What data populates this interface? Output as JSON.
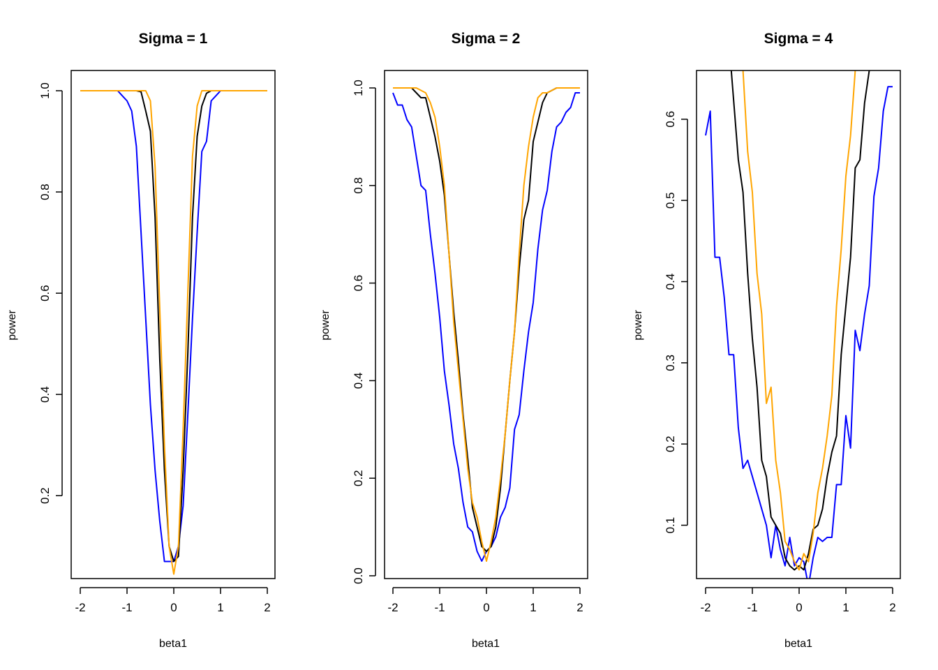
{
  "figure": {
    "panels": [
      {
        "title": "Sigma = 1",
        "xlabel": "beta1",
        "ylabel": "power"
      },
      {
        "title": "Sigma = 2",
        "xlabel": "beta1",
        "ylabel": "power"
      },
      {
        "title": "Sigma = 4",
        "xlabel": "beta1",
        "ylabel": "power"
      }
    ]
  },
  "chart_data": [
    {
      "type": "line",
      "title": "Sigma = 1",
      "xlabel": "beta1",
      "ylabel": "power",
      "xlim": [
        -2,
        2
      ],
      "ylim": [
        0.05,
        1.0
      ],
      "xticks": [
        -2,
        -1,
        0,
        1,
        2
      ],
      "xtick_labels": [
        "-2",
        "-1",
        "0",
        "1",
        "2"
      ],
      "yticks": [
        0.2,
        0.4,
        0.6,
        0.8,
        1.0
      ],
      "ytick_labels": [
        "0.2",
        "0.4",
        "0.6",
        "0.8",
        "1.0"
      ],
      "series": [
        {
          "color": "#0000ff",
          "x": [
            -2.0,
            -1.2,
            -1.1,
            -1.0,
            -0.9,
            -0.8,
            -0.7,
            -0.6,
            -0.5,
            -0.4,
            -0.3,
            -0.2,
            -0.1,
            0.0,
            0.1,
            0.2,
            0.3,
            0.4,
            0.5,
            0.6,
            0.7,
            0.8,
            0.9,
            1.0,
            1.2,
            2.0
          ],
          "y": [
            1.0,
            1.0,
            0.99,
            0.98,
            0.96,
            0.89,
            0.72,
            0.55,
            0.38,
            0.25,
            0.15,
            0.07,
            0.07,
            0.07,
            0.1,
            0.18,
            0.36,
            0.55,
            0.72,
            0.88,
            0.9,
            0.98,
            0.99,
            1.0,
            1.0,
            1.0
          ]
        },
        {
          "color": "#000000",
          "x": [
            -2.0,
            -0.8,
            -0.7,
            -0.6,
            -0.5,
            -0.4,
            -0.3,
            -0.2,
            -0.1,
            0.0,
            0.1,
            0.2,
            0.3,
            0.4,
            0.5,
            0.6,
            0.7,
            0.8,
            2.0
          ],
          "y": [
            1.0,
            1.0,
            0.998,
            0.96,
            0.92,
            0.75,
            0.47,
            0.25,
            0.1,
            0.07,
            0.08,
            0.25,
            0.48,
            0.75,
            0.91,
            0.97,
            0.995,
            1.0,
            1.0
          ]
        },
        {
          "color": "#ffa500",
          "x": [
            -2.0,
            -0.7,
            -0.6,
            -0.5,
            -0.4,
            -0.3,
            -0.2,
            -0.1,
            0.0,
            0.1,
            0.2,
            0.3,
            0.4,
            0.5,
            0.6,
            0.7,
            2.0
          ],
          "y": [
            1.0,
            1.0,
            1.0,
            0.98,
            0.85,
            0.57,
            0.3,
            0.1,
            0.045,
            0.1,
            0.33,
            0.6,
            0.87,
            0.97,
            1.0,
            1.0,
            1.0
          ]
        }
      ]
    },
    {
      "type": "line",
      "title": "Sigma = 2",
      "xlabel": "beta1",
      "ylabel": "power",
      "xlim": [
        -2,
        2
      ],
      "ylim": [
        0.0,
        1.0
      ],
      "xticks": [
        -2,
        -1,
        0,
        1,
        2
      ],
      "xtick_labels": [
        "-2",
        "-1",
        "0",
        "1",
        "2"
      ],
      "yticks": [
        0.0,
        0.2,
        0.4,
        0.6,
        0.8,
        1.0
      ],
      "ytick_labels": [
        "0.0",
        "0.2",
        "0.4",
        "0.6",
        "0.8",
        "1.0"
      ],
      "series": [
        {
          "color": "#0000ff",
          "x": [
            -2.0,
            -1.9,
            -1.8,
            -1.7,
            -1.6,
            -1.5,
            -1.4,
            -1.3,
            -1.2,
            -1.1,
            -1.0,
            -0.9,
            -0.8,
            -0.7,
            -0.6,
            -0.5,
            -0.4,
            -0.3,
            -0.2,
            -0.1,
            0.0,
            0.1,
            0.2,
            0.3,
            0.4,
            0.5,
            0.6,
            0.7,
            0.8,
            0.9,
            1.0,
            1.1,
            1.2,
            1.3,
            1.4,
            1.5,
            1.6,
            1.7,
            1.8,
            1.9,
            2.0
          ],
          "y": [
            0.99,
            0.965,
            0.965,
            0.935,
            0.92,
            0.86,
            0.8,
            0.79,
            0.7,
            0.62,
            0.53,
            0.42,
            0.35,
            0.27,
            0.22,
            0.15,
            0.1,
            0.09,
            0.05,
            0.03,
            0.05,
            0.06,
            0.08,
            0.12,
            0.14,
            0.18,
            0.3,
            0.33,
            0.42,
            0.5,
            0.56,
            0.67,
            0.75,
            0.79,
            0.87,
            0.92,
            0.93,
            0.95,
            0.96,
            0.99,
            0.99
          ]
        },
        {
          "color": "#000000",
          "x": [
            -2.0,
            -1.8,
            -1.6,
            -1.5,
            -1.4,
            -1.3,
            -1.2,
            -1.1,
            -1.0,
            -0.9,
            -0.8,
            -0.7,
            -0.6,
            -0.5,
            -0.4,
            -0.3,
            -0.2,
            -0.1,
            0.0,
            0.1,
            0.2,
            0.3,
            0.4,
            0.5,
            0.6,
            0.7,
            0.8,
            0.9,
            1.0,
            1.1,
            1.2,
            1.3,
            1.4,
            1.5,
            2.0
          ],
          "y": [
            1.0,
            1.0,
            1.0,
            0.99,
            0.98,
            0.98,
            0.94,
            0.9,
            0.85,
            0.78,
            0.66,
            0.54,
            0.44,
            0.33,
            0.24,
            0.14,
            0.1,
            0.06,
            0.05,
            0.06,
            0.1,
            0.18,
            0.29,
            0.4,
            0.5,
            0.63,
            0.73,
            0.77,
            0.89,
            0.93,
            0.97,
            0.99,
            0.995,
            1.0,
            1.0
          ]
        },
        {
          "color": "#ffa500",
          "x": [
            -2.0,
            -1.7,
            -1.5,
            -1.4,
            -1.3,
            -1.2,
            -1.1,
            -1.0,
            -0.9,
            -0.8,
            -0.7,
            -0.6,
            -0.5,
            -0.4,
            -0.3,
            -0.2,
            -0.1,
            0.0,
            0.1,
            0.2,
            0.3,
            0.4,
            0.5,
            0.6,
            0.7,
            0.8,
            0.9,
            1.0,
            1.1,
            1.2,
            1.3,
            1.5,
            2.0
          ],
          "y": [
            1.0,
            1.0,
            1.0,
            0.995,
            0.99,
            0.97,
            0.94,
            0.88,
            0.8,
            0.66,
            0.52,
            0.42,
            0.32,
            0.22,
            0.15,
            0.12,
            0.07,
            0.03,
            0.07,
            0.12,
            0.2,
            0.29,
            0.4,
            0.5,
            0.66,
            0.8,
            0.88,
            0.94,
            0.98,
            0.99,
            0.99,
            1.0,
            1.0
          ]
        }
      ]
    },
    {
      "type": "line",
      "title": "Sigma = 4",
      "xlabel": "beta1",
      "ylabel": "power",
      "xlim": [
        -2,
        2
      ],
      "ylim": [
        0.03,
        0.66
      ],
      "xticks": [
        -2,
        -1,
        0,
        1,
        2
      ],
      "xtick_labels": [
        "-2",
        "-1",
        "0",
        "1",
        "2"
      ],
      "yticks": [
        0.1,
        0.2,
        0.3,
        0.4,
        0.5,
        0.6
      ],
      "ytick_labels": [
        "0.1",
        "0.2",
        "0.3",
        "0.4",
        "0.5",
        "0.6"
      ],
      "series": [
        {
          "color": "#0000ff",
          "x": [
            -2.0,
            -1.9,
            -1.8,
            -1.7,
            -1.6,
            -1.5,
            -1.4,
            -1.3,
            -1.2,
            -1.1,
            -1.0,
            -0.9,
            -0.8,
            -0.7,
            -0.6,
            -0.5,
            -0.4,
            -0.3,
            -0.2,
            -0.1,
            0.0,
            0.1,
            0.2,
            0.3,
            0.4,
            0.5,
            0.6,
            0.7,
            0.8,
            0.9,
            1.0,
            1.1,
            1.2,
            1.3,
            1.4,
            1.5,
            1.6,
            1.7,
            1.8,
            1.9,
            2.0
          ],
          "y": [
            0.58,
            0.61,
            0.43,
            0.43,
            0.38,
            0.31,
            0.31,
            0.22,
            0.17,
            0.18,
            0.16,
            0.14,
            0.12,
            0.1,
            0.06,
            0.1,
            0.07,
            0.05,
            0.085,
            0.05,
            0.06,
            0.055,
            0.025,
            0.06,
            0.085,
            0.08,
            0.085,
            0.085,
            0.15,
            0.15,
            0.235,
            0.195,
            0.34,
            0.315,
            0.36,
            0.395,
            0.505,
            0.54,
            0.61,
            0.64,
            0.64
          ]
        },
        {
          "color": "#000000",
          "x": [
            -1.45,
            -1.3,
            -1.2,
            -1.1,
            -1.0,
            -0.9,
            -0.8,
            -0.7,
            -0.6,
            -0.5,
            -0.4,
            -0.3,
            -0.2,
            -0.1,
            0.0,
            0.1,
            0.2,
            0.3,
            0.4,
            0.5,
            0.6,
            0.7,
            0.8,
            0.9,
            1.0,
            1.1,
            1.2,
            1.3,
            1.4,
            1.5
          ],
          "y": [
            0.66,
            0.55,
            0.51,
            0.41,
            0.33,
            0.27,
            0.18,
            0.16,
            0.11,
            0.1,
            0.09,
            0.06,
            0.05,
            0.045,
            0.05,
            0.045,
            0.065,
            0.095,
            0.1,
            0.12,
            0.16,
            0.19,
            0.21,
            0.31,
            0.37,
            0.43,
            0.54,
            0.55,
            0.62,
            0.66
          ]
        },
        {
          "color": "#ffa500",
          "x": [
            -1.2,
            -1.1,
            -1.0,
            -0.9,
            -0.8,
            -0.7,
            -0.6,
            -0.5,
            -0.4,
            -0.3,
            -0.2,
            -0.1,
            0.0,
            0.1,
            0.2,
            0.3,
            0.4,
            0.5,
            0.6,
            0.7,
            0.8,
            0.9,
            1.0,
            1.1,
            1.2
          ],
          "y": [
            0.66,
            0.56,
            0.51,
            0.41,
            0.36,
            0.25,
            0.27,
            0.18,
            0.14,
            0.08,
            0.07,
            0.055,
            0.045,
            0.065,
            0.055,
            0.09,
            0.14,
            0.17,
            0.21,
            0.26,
            0.37,
            0.44,
            0.53,
            0.58,
            0.66
          ]
        }
      ]
    }
  ]
}
